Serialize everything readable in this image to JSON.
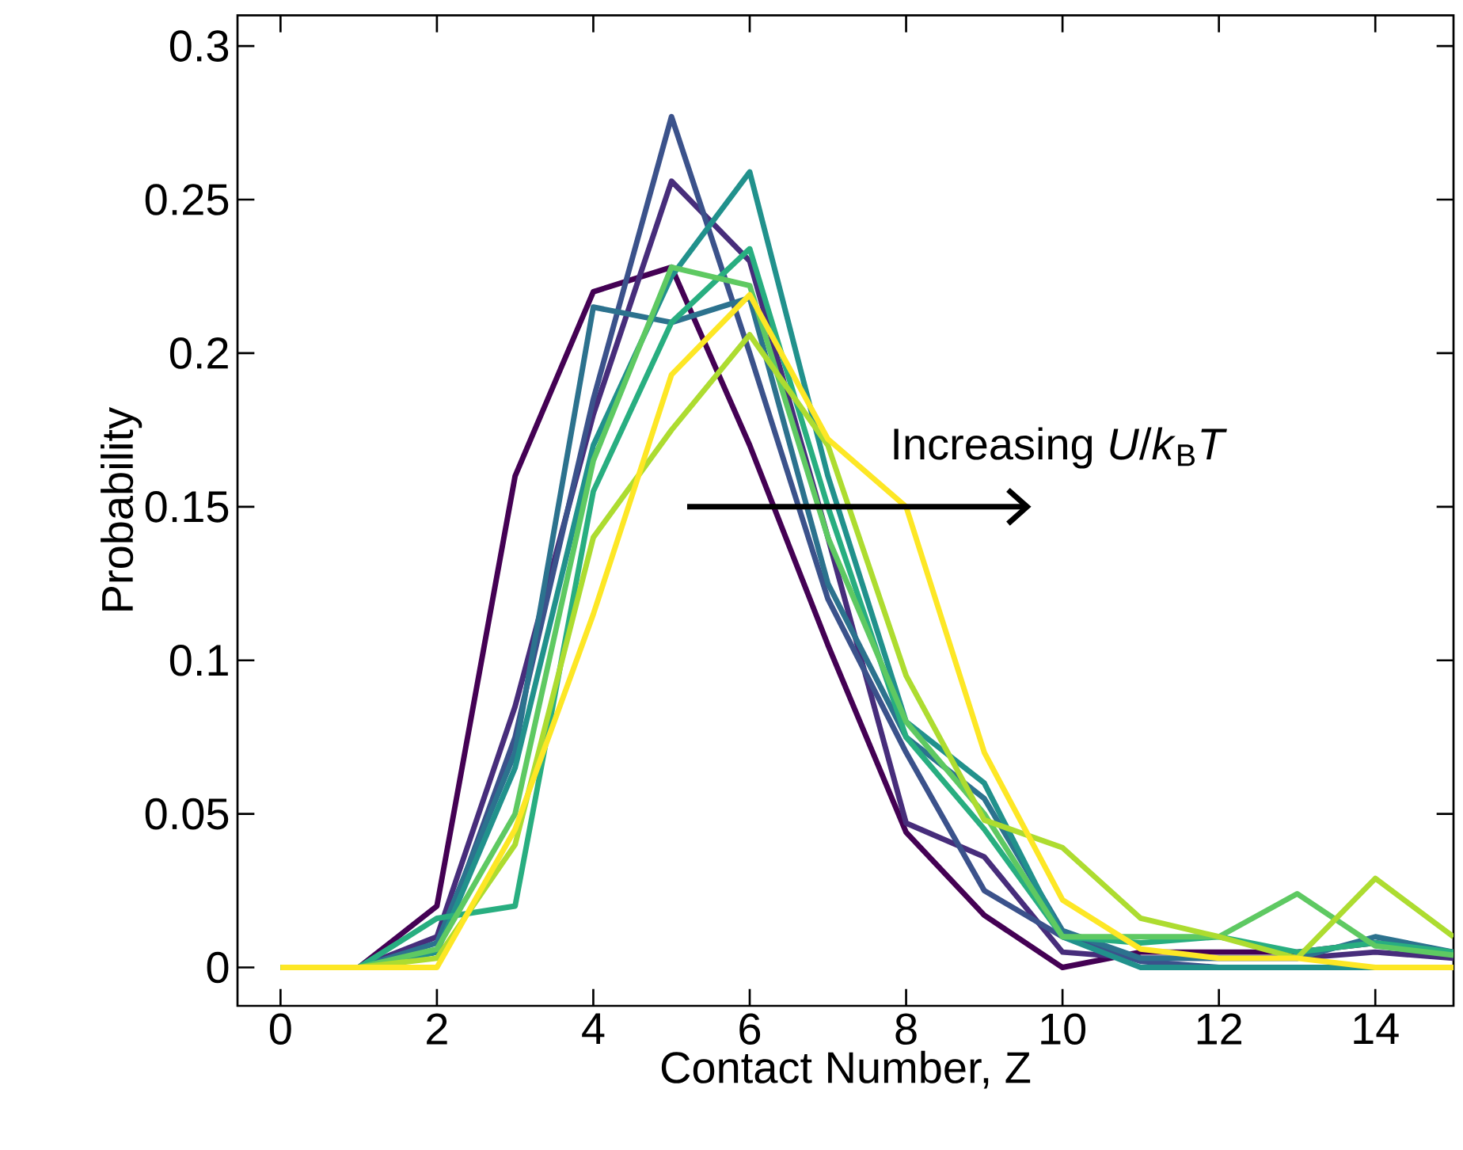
{
  "chart_data": {
    "type": "line",
    "xlabel": "Contact Number, Z",
    "ylabel": "Probability",
    "x": [
      0,
      1,
      2,
      3,
      4,
      5,
      6,
      7,
      8,
      9,
      10,
      11,
      12,
      13,
      14,
      15
    ],
    "xlim": [
      -0.55,
      15
    ],
    "ylim": [
      -0.0125,
      0.31
    ],
    "xticks": [
      0,
      2,
      4,
      6,
      8,
      10,
      12,
      14
    ],
    "yticks": [
      0,
      0.05,
      0.1,
      0.15,
      0.2,
      0.25,
      0.3
    ],
    "grid": false,
    "marker": "none",
    "line_style": "solid",
    "annotations": [
      "Increasing *U*/*k*$_{B}$*T*"
    ],
    "series": [
      {
        "color": "#440154",
        "values": [
          0,
          0,
          0.02,
          0.16,
          0.22,
          0.228,
          0.17,
          0.105,
          0.044,
          0.017,
          0,
          0.005,
          0.005,
          0.005,
          0.008,
          0.005
        ]
      },
      {
        "color": "#472d7b",
        "values": [
          0,
          0,
          0.01,
          0.085,
          0.18,
          0.256,
          0.23,
          0.14,
          0.047,
          0.036,
          0.005,
          0.003,
          0.003,
          0.003,
          0.005,
          0.003
        ]
      },
      {
        "color": "#3b528b",
        "values": [
          0,
          0,
          0.005,
          0.075,
          0.185,
          0.277,
          0.2,
          0.12,
          0.07,
          0.025,
          0.01,
          0.002,
          0,
          0,
          null,
          null
        ]
      },
      {
        "color": "#2c728e",
        "values": [
          0,
          0,
          0.008,
          0.07,
          0.215,
          0.21,
          0.218,
          0.125,
          0.075,
          0.055,
          0.012,
          0.003,
          0.003,
          0.003,
          0.01,
          0.005
        ]
      },
      {
        "color": "#21918c",
        "values": [
          0,
          0,
          0.005,
          0.065,
          0.17,
          0.225,
          0.259,
          0.16,
          0.08,
          0.06,
          0.01,
          0,
          0,
          0,
          0,
          0
        ]
      },
      {
        "color": "#28ae80",
        "values": [
          0,
          0,
          0.016,
          0.02,
          0.155,
          0.21,
          0.234,
          0.15,
          0.075,
          0.045,
          0.01,
          0.008,
          0.01,
          0.005,
          0.008,
          0.005
        ]
      },
      {
        "color": "#5ec962",
        "values": [
          0,
          0,
          0.006,
          0.05,
          0.165,
          0.228,
          0.222,
          0.14,
          0.08,
          0.05,
          0.01,
          0.01,
          0.01,
          0.024,
          0.007,
          0.004
        ]
      },
      {
        "color": "#addc30",
        "values": [
          0,
          0,
          0.003,
          0.04,
          0.14,
          0.175,
          0.206,
          0.17,
          0.095,
          0.048,
          0.039,
          0.016,
          0.01,
          0.003,
          0.029,
          0.01
        ]
      },
      {
        "color": "#fde725",
        "values": [
          0,
          0,
          0,
          0.045,
          0.115,
          0.193,
          0.219,
          0.172,
          0.15,
          0.07,
          0.022,
          0.006,
          0.003,
          0.003,
          0,
          0
        ]
      }
    ]
  }
}
